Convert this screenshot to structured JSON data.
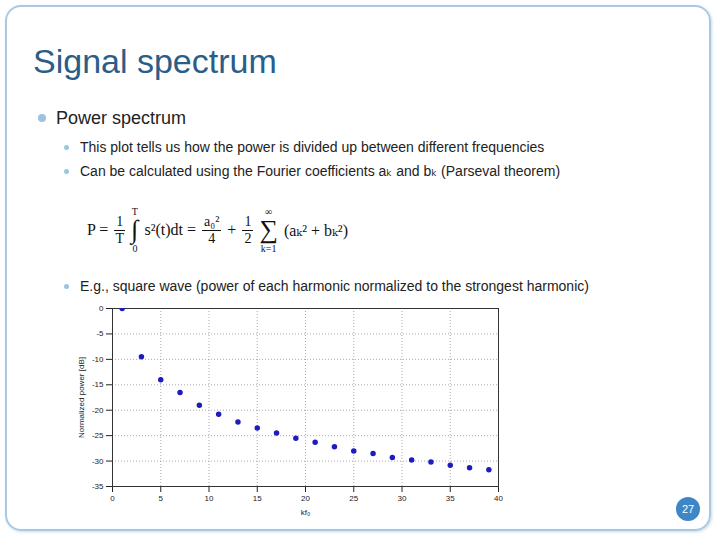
{
  "slide": {
    "title": "Signal spectrum",
    "bullet": "Power spectrum",
    "sub_bullets": [
      "This plot tells us how the power is divided up between different frequencies",
      "Can be calculated using the Fourier coefficients aₖ and bₖ (Parseval theorem)"
    ],
    "formula": [
      {
        "kind": "text",
        "text": "P ="
      },
      {
        "kind": "frac",
        "num": "1",
        "den": "T"
      },
      {
        "kind": "big",
        "sym": "∫",
        "upper": "T",
        "lower": "0"
      },
      {
        "kind": "text",
        "text": "s²(t)dt ="
      },
      {
        "kind": "frac",
        "num": "a₀²",
        "den": "4"
      },
      {
        "kind": "text",
        "text": "+"
      },
      {
        "kind": "frac",
        "num": "1",
        "den": "2"
      },
      {
        "kind": "big",
        "sym": "∑",
        "upper": "∞",
        "lower": "k=1"
      },
      {
        "kind": "text",
        "text": "(aₖ² + bₖ²)"
      }
    ],
    "example": "E.g., square wave (power of each harmonic normalized to the strongest harmonic)",
    "page_number": "27"
  },
  "chart_data": {
    "type": "scatter",
    "x_label": "kf₀",
    "y_label": "Normalized power [dB]",
    "x": [
      1,
      3,
      5,
      7,
      9,
      11,
      13,
      15,
      17,
      19,
      21,
      23,
      25,
      27,
      29,
      31,
      33,
      35,
      37,
      39
    ],
    "values": [
      0,
      -9.5,
      -14,
      -16.5,
      -19,
      -20.8,
      -22.3,
      -23.5,
      -24.5,
      -25.5,
      -26.3,
      -27.2,
      -28,
      -28.5,
      -29.3,
      -29.8,
      -30.2,
      -30.8,
      -31.3,
      -31.7
    ],
    "color": "#1c1cc0",
    "marker": "circle",
    "xlim": [
      0,
      40
    ],
    "ylim": [
      -35,
      0
    ],
    "xticks": [
      0,
      5,
      10,
      15,
      20,
      25,
      30,
      35,
      40
    ],
    "yticks": [
      -35,
      -30,
      -25,
      -20,
      -15,
      -10,
      -5,
      0
    ],
    "grid": true
  }
}
